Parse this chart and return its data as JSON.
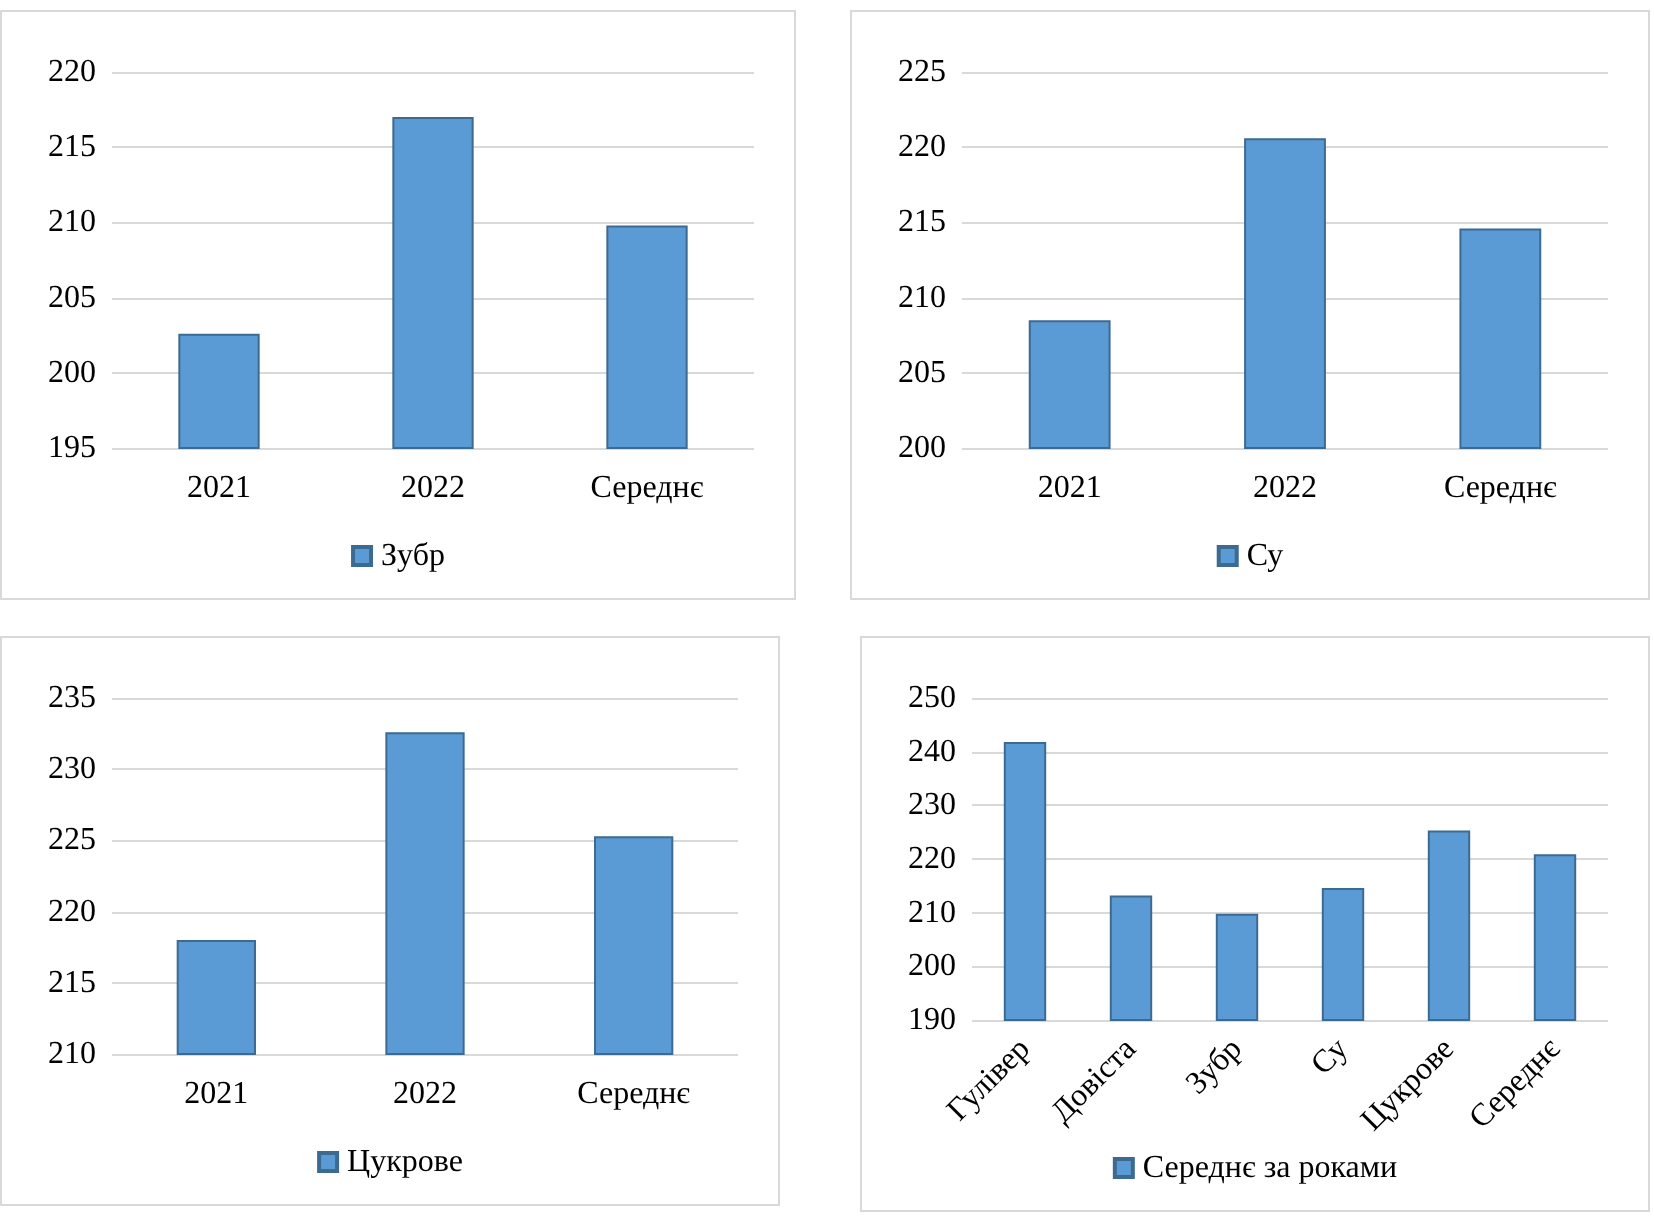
{
  "chart_data": [
    {
      "type": "bar",
      "categories": [
        "2021",
        "2022",
        "Середнє"
      ],
      "series": [
        {
          "name": "Зубр",
          "color": "#5b9bd5",
          "values": [
            202.6,
            217.0,
            209.8
          ]
        }
      ],
      "ylim": [
        195,
        220
      ],
      "yticks": [
        195,
        200,
        205,
        210,
        215,
        220
      ],
      "grid": "y",
      "legend": "bottom"
    },
    {
      "type": "bar",
      "categories": [
        "2021",
        "2022",
        "Середнє"
      ],
      "series": [
        {
          "name": "Су",
          "color": "#5b9bd5",
          "values": [
            208.5,
            220.6,
            214.6
          ]
        }
      ],
      "ylim": [
        200,
        225
      ],
      "yticks": [
        200,
        205,
        210,
        215,
        220,
        225
      ],
      "grid": "y",
      "legend": "bottom"
    },
    {
      "type": "bar",
      "categories": [
        "2021",
        "2022",
        "Середнє"
      ],
      "series": [
        {
          "name": "Цукрове",
          "color": "#5b9bd5",
          "values": [
            218.0,
            232.6,
            225.3
          ]
        }
      ],
      "ylim": [
        210,
        235
      ],
      "yticks": [
        210,
        215,
        220,
        225,
        230,
        235
      ],
      "grid": "y",
      "legend": "bottom"
    },
    {
      "type": "bar",
      "categories": [
        "Гулівер",
        "Довіста",
        "Зубр",
        "Су",
        "Цукрове",
        "Середнє"
      ],
      "series": [
        {
          "name": "Середнє за роками",
          "color": "#5b9bd5",
          "values": [
            241.8,
            213.2,
            209.8,
            214.6,
            225.3,
            220.9
          ]
        }
      ],
      "ylim": [
        190,
        250
      ],
      "yticks": [
        190,
        200,
        210,
        220,
        230,
        240,
        250
      ],
      "grid": "y",
      "legend": "bottom"
    }
  ]
}
